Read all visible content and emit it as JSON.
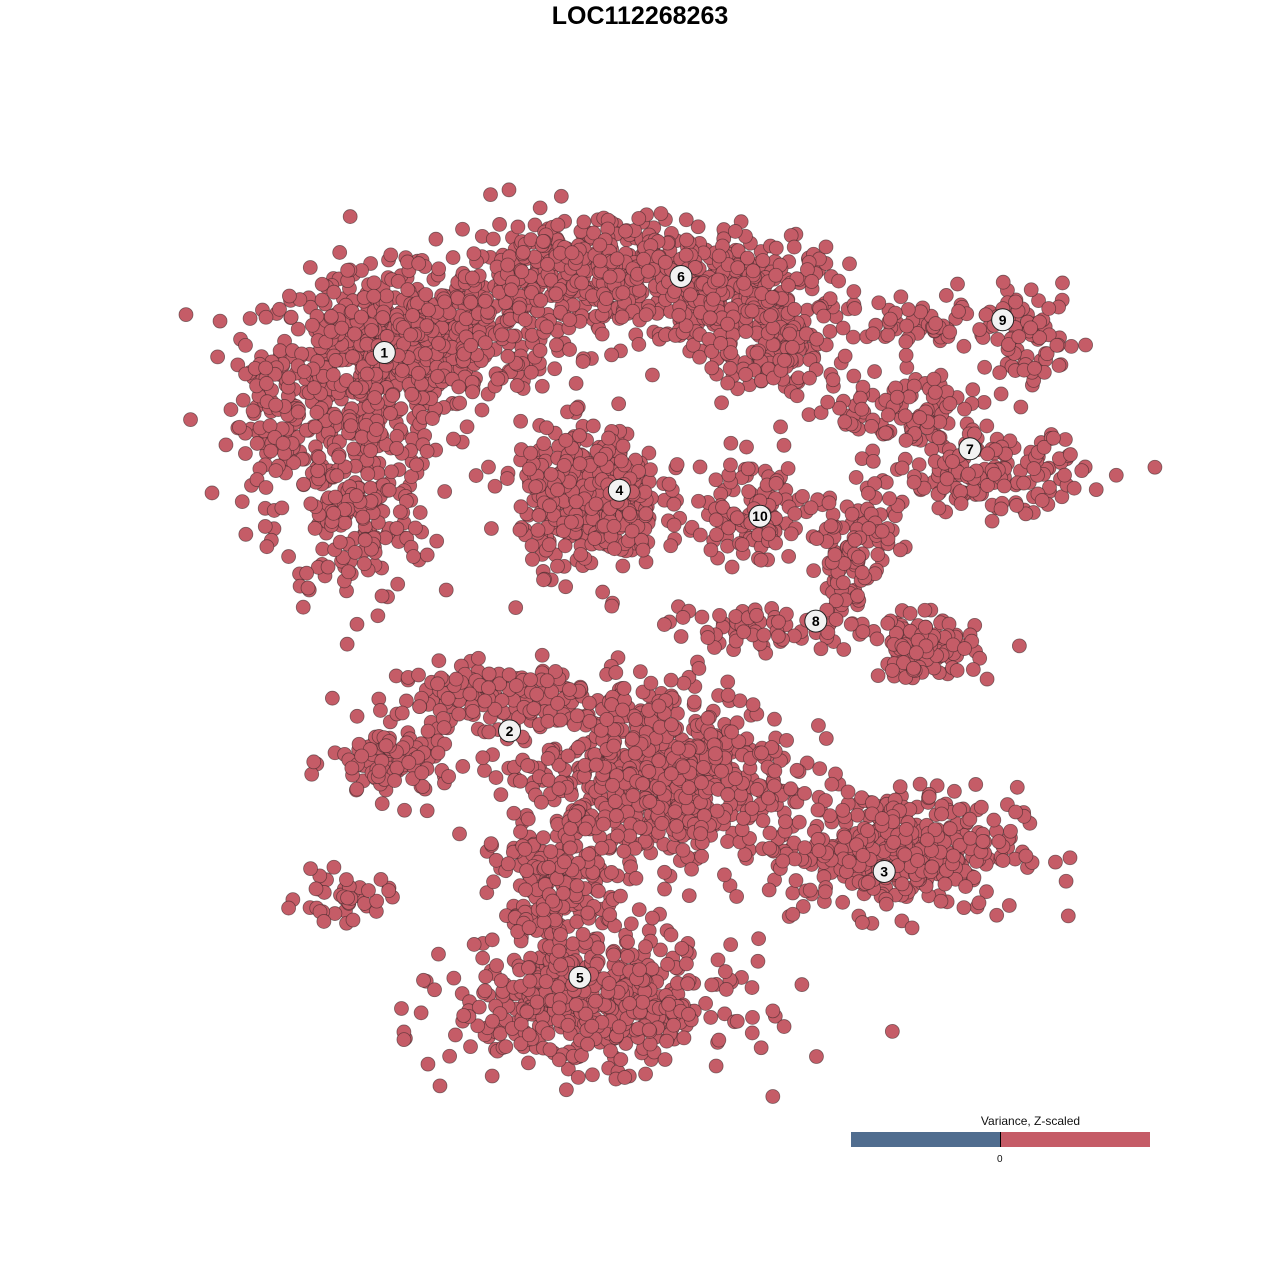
{
  "title": "LOC112268263",
  "chart_data": {
    "type": "scatter",
    "title": "LOC112268263",
    "xlabel": "",
    "ylabel": "",
    "axes_visible": false,
    "grid": false,
    "xlim": [
      -45,
      50
    ],
    "ylim": [
      -47,
      47
    ],
    "point_color": "#c55c67",
    "point_outline": "#3b2628",
    "note_points": "points are approximated as gaussian blobs per cluster",
    "clusters": [
      {
        "label": "1",
        "label_pos": [
          -26.9,
          29.6
        ],
        "blobs": [
          [
            -28,
            28,
            7,
            6,
            500
          ],
          [
            -30,
            13,
            5,
            6,
            200
          ],
          [
            -20,
            32,
            8,
            4,
            300
          ],
          [
            -38,
            22,
            3,
            5,
            80
          ]
        ]
      },
      {
        "label": "2",
        "label_pos": [
          -13.9,
          -9.7
        ],
        "blobs": [
          [
            -16,
            -6,
            6,
            2,
            150
          ],
          [
            -26,
            -13,
            4,
            2.5,
            120
          ],
          [
            -31,
            -27,
            3,
            1.5,
            40
          ]
        ]
      },
      {
        "label": "3",
        "label_pos": [
          25.0,
          -24.3
        ],
        "blobs": [
          [
            26,
            -22,
            8,
            4,
            400
          ],
          [
            1,
            -14,
            9,
            6,
            700
          ]
        ]
      },
      {
        "label": "4",
        "label_pos": [
          -2.5,
          15.3
        ],
        "blobs": [
          [
            -5.5,
            14.5,
            4.5,
            4.5,
            450
          ]
        ]
      },
      {
        "label": "5",
        "label_pos": [
          -6.6,
          -35.3
        ],
        "blobs": [
          [
            -5,
            -38,
            9,
            4,
            500
          ],
          [
            -9,
            -27,
            4,
            5,
            200
          ]
        ]
      },
      {
        "label": "6",
        "label_pos": [
          3.9,
          37.5
        ],
        "blobs": [
          [
            -4,
            38,
            10,
            3.5,
            500
          ],
          [
            10,
            35,
            7,
            4,
            250
          ],
          [
            14,
            30,
            4,
            3,
            100
          ]
        ]
      },
      {
        "label": "7",
        "label_pos": [
          33.9,
          19.6
        ],
        "blobs": [
          [
            28,
            23,
            5,
            3,
            120
          ],
          [
            36,
            17,
            6,
            2.5,
            150
          ]
        ]
      },
      {
        "label": "8",
        "label_pos": [
          17.9,
          1.7
        ],
        "blobs": [
          [
            23,
            11,
            4,
            2.5,
            60
          ],
          [
            21,
            6,
            1.8,
            4,
            60
          ],
          [
            29,
            -1,
            3.5,
            2,
            120
          ],
          [
            12,
            1,
            6,
            1.5,
            60
          ]
        ]
      },
      {
        "label": "9",
        "label_pos": [
          37.3,
          33.0
        ],
        "blobs": [
          [
            31,
            33,
            5,
            1.8,
            60
          ],
          [
            40,
            31,
            3,
            3,
            80
          ]
        ]
      },
      {
        "label": "10",
        "label_pos": [
          12.1,
          12.6
        ],
        "blobs": [
          [
            11,
            14,
            5,
            3,
            80
          ],
          [
            12,
            11,
            2,
            2.5,
            40
          ]
        ]
      }
    ],
    "legend": {
      "title": "Variance, Z-scaled",
      "tick_label": "0",
      "low_color": "#506d8f",
      "high_color": "#c55c67",
      "placement": "bottom-right"
    }
  }
}
